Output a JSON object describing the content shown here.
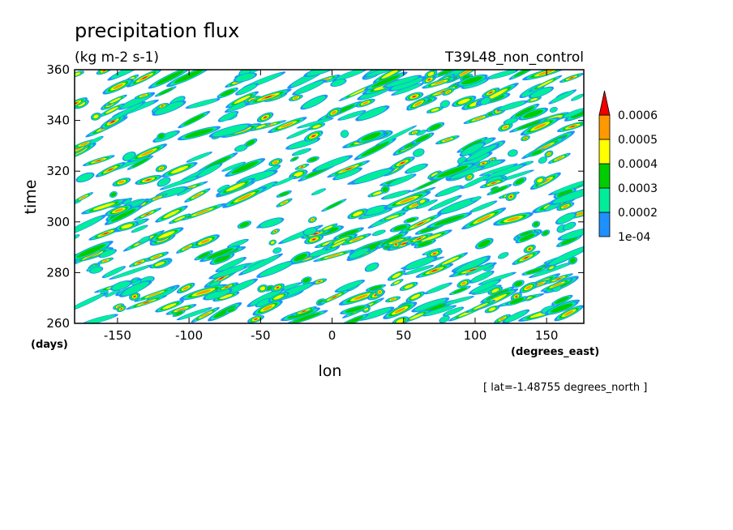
{
  "chart_data": {
    "type": "heatmap",
    "title": "precipitation flux",
    "units": "(kg m-2 s-1)",
    "experiment": "T39L48_non_control",
    "xlabel": "lon",
    "x_units": "(degrees_east)",
    "ylabel": "time",
    "y_units": "(days)",
    "xlim": [
      -180,
      176
    ],
    "ylim": [
      260,
      360
    ],
    "x_ticks": [
      -150,
      -100,
      -50,
      0,
      50,
      100,
      150
    ],
    "y_ticks": [
      260,
      280,
      300,
      320,
      340,
      360
    ],
    "slice_note": "[ lat=-1.48755 degrees_north ]",
    "colorbar": {
      "levels": [
        "1e-04",
        "0.0002",
        "0.0003",
        "0.0004",
        "0.0005",
        "0.0006"
      ],
      "colors": [
        "#1e90ff",
        "#00ee9a",
        "#00cc00",
        "#ffff00",
        "#ff9900",
        "#ee0000"
      ],
      "extend": "max"
    }
  }
}
